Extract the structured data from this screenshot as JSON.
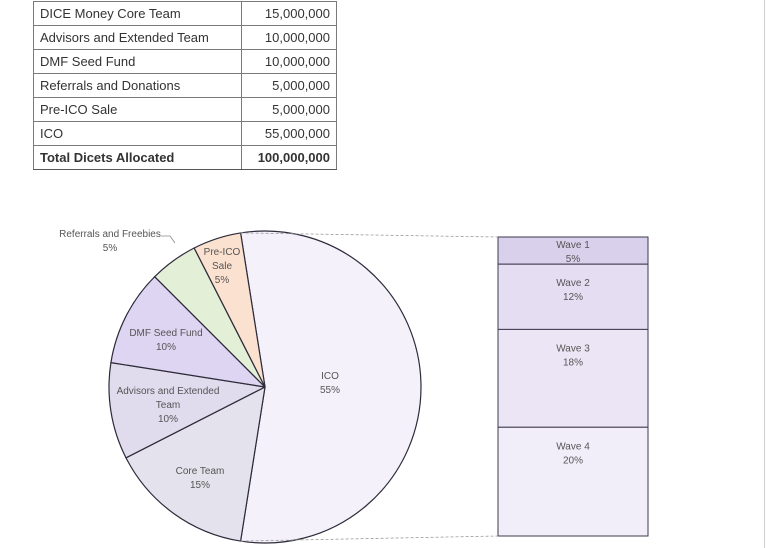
{
  "table": {
    "rows": [
      {
        "label": "DICE Money Core Team",
        "value": "15,000,000"
      },
      {
        "label": "Advisors and Extended Team",
        "value": "10,000,000"
      },
      {
        "label": "DMF Seed Fund",
        "value": "10,000,000"
      },
      {
        "label": "Referrals and Donations",
        "value": "5,000,000"
      },
      {
        "label": "Pre-ICO Sale",
        "value": "5,000,000"
      },
      {
        "label": "ICO",
        "value": "55,000,000"
      }
    ],
    "total": {
      "label": "Total Dicets Allocated",
      "value": "100,000,000"
    }
  },
  "chart_data": {
    "type": "pie",
    "title": "",
    "slices": [
      {
        "label": "ICO",
        "value": 55,
        "pct_label": "55%",
        "color": "#f4f1fb"
      },
      {
        "label": "Core Team",
        "value": 15,
        "pct_label": "15%",
        "color": "#e4e2ec"
      },
      {
        "label": "Advisors and Extended Team",
        "value": 10,
        "pct_label": "10%",
        "color": "#e0dcee"
      },
      {
        "label": "DMF Seed Fund",
        "value": 10,
        "pct_label": "10%",
        "color": "#ddd5f1"
      },
      {
        "label": "Referrals and Freebies",
        "value": 5,
        "pct_label": "5%",
        "color": "#e4efd8"
      },
      {
        "label": "Pre-ICO Sale",
        "value": 5,
        "pct_label": "5%",
        "color": "#fbe1cf"
      }
    ],
    "breakdown": {
      "of": "ICO",
      "bars": [
        {
          "label": "Wave 1",
          "value": 5,
          "pct_label": "5%",
          "color": "#d9d0ec"
        },
        {
          "label": "Wave 2",
          "value": 12,
          "pct_label": "12%",
          "color": "#e5ddf2"
        },
        {
          "label": "Wave 3",
          "value": 18,
          "pct_label": "18%",
          "color": "#ebe5f5"
        },
        {
          "label": "Wave 4",
          "value": 20,
          "pct_label": "20%",
          "color": "#f2eef9"
        }
      ]
    }
  }
}
